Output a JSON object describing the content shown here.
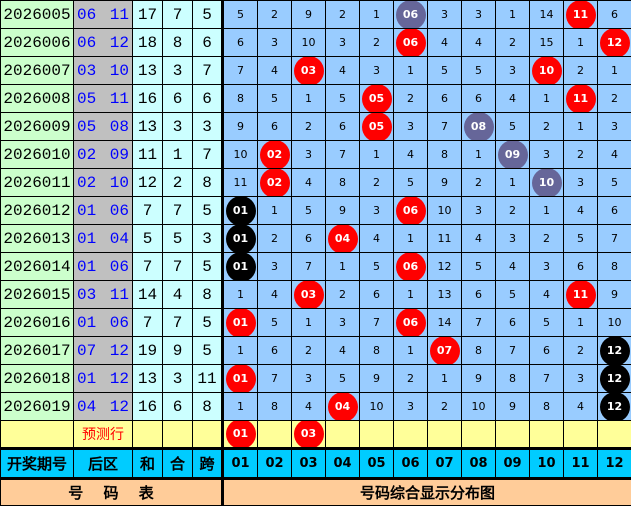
{
  "colors": {
    "red": "#ff0000",
    "purple": "#666699",
    "black": "#000000",
    "cell": "#99ccff",
    "issue": "#ccffcc",
    "back": "#c0c0c0",
    "sum": "#ccffff",
    "predict": "#ffff99",
    "header": "#00ccff",
    "footer": "#ffcc99"
  },
  "rows": [
    {
      "issue": "2026005",
      "back": "06 11",
      "he": "17",
      "hez": "7",
      "kua": "5",
      "cells": [
        "5",
        "2",
        "9",
        "2",
        "1",
        {
          "b": "06",
          "c": "purple"
        },
        "3",
        "3",
        "1",
        "14",
        {
          "b": "11",
          "c": "red"
        },
        "6"
      ]
    },
    {
      "issue": "2026006",
      "back": "06 12",
      "he": "18",
      "hez": "8",
      "kua": "6",
      "cells": [
        "6",
        "3",
        "10",
        "3",
        "2",
        {
          "b": "06",
          "c": "red"
        },
        "4",
        "4",
        "2",
        "15",
        "1",
        {
          "b": "12",
          "c": "red"
        }
      ]
    },
    {
      "issue": "2026007",
      "back": "03 10",
      "he": "13",
      "hez": "3",
      "kua": "7",
      "cells": [
        "7",
        "4",
        {
          "b": "03",
          "c": "red"
        },
        "4",
        "3",
        "1",
        "5",
        "5",
        "3",
        {
          "b": "10",
          "c": "red"
        },
        "2",
        "1"
      ]
    },
    {
      "issue": "2026008",
      "back": "05 11",
      "he": "16",
      "hez": "6",
      "kua": "6",
      "cells": [
        "8",
        "5",
        "1",
        "5",
        {
          "b": "05",
          "c": "red"
        },
        "2",
        "6",
        "6",
        "4",
        "1",
        {
          "b": "11",
          "c": "red"
        },
        "2"
      ]
    },
    {
      "issue": "2026009",
      "back": "05 08",
      "he": "13",
      "hez": "3",
      "kua": "3",
      "cells": [
        "9",
        "6",
        "2",
        "6",
        {
          "b": "05",
          "c": "red"
        },
        "3",
        "7",
        {
          "b": "08",
          "c": "purple"
        },
        "5",
        "2",
        "1",
        "3"
      ]
    },
    {
      "issue": "2026010",
      "back": "02 09",
      "he": "11",
      "hez": "1",
      "kua": "7",
      "cells": [
        "10",
        {
          "b": "02",
          "c": "red"
        },
        "3",
        "7",
        "1",
        "4",
        "8",
        "1",
        {
          "b": "09",
          "c": "purple"
        },
        "3",
        "2",
        "4"
      ]
    },
    {
      "issue": "2026011",
      "back": "02 10",
      "he": "12",
      "hez": "2",
      "kua": "8",
      "cells": [
        "11",
        {
          "b": "02",
          "c": "red"
        },
        "4",
        "8",
        "2",
        "5",
        "9",
        "2",
        "1",
        {
          "b": "10",
          "c": "purple"
        },
        "3",
        "5"
      ]
    },
    {
      "issue": "2026012",
      "back": "01 06",
      "he": "7",
      "hez": "7",
      "kua": "5",
      "cells": [
        {
          "b": "01",
          "c": "black"
        },
        "1",
        "5",
        "9",
        "3",
        {
          "b": "06",
          "c": "red"
        },
        "10",
        "3",
        "2",
        "1",
        "4",
        "6"
      ]
    },
    {
      "issue": "2026013",
      "back": "01 04",
      "he": "5",
      "hez": "5",
      "kua": "3",
      "cells": [
        {
          "b": "01",
          "c": "black"
        },
        "2",
        "6",
        {
          "b": "04",
          "c": "red"
        },
        "4",
        "1",
        "11",
        "4",
        "3",
        "2",
        "5",
        "7"
      ]
    },
    {
      "issue": "2026014",
      "back": "01 06",
      "he": "7",
      "hez": "7",
      "kua": "5",
      "cells": [
        {
          "b": "01",
          "c": "black"
        },
        "3",
        "7",
        "1",
        "5",
        {
          "b": "06",
          "c": "red"
        },
        "12",
        "5",
        "4",
        "3",
        "6",
        "8"
      ]
    },
    {
      "issue": "2026015",
      "back": "03 11",
      "he": "14",
      "hez": "4",
      "kua": "8",
      "cells": [
        "1",
        "4",
        {
          "b": "03",
          "c": "red"
        },
        "2",
        "6",
        "1",
        "13",
        "6",
        "5",
        "4",
        {
          "b": "11",
          "c": "red"
        },
        "9"
      ]
    },
    {
      "issue": "2026016",
      "back": "01 06",
      "he": "7",
      "hez": "7",
      "kua": "5",
      "cells": [
        {
          "b": "01",
          "c": "red"
        },
        "5",
        "1",
        "3",
        "7",
        {
          "b": "06",
          "c": "red"
        },
        "14",
        "7",
        "6",
        "5",
        "1",
        "10"
      ]
    },
    {
      "issue": "2026017",
      "back": "07 12",
      "he": "19",
      "hez": "9",
      "kua": "5",
      "cells": [
        "1",
        "6",
        "2",
        "4",
        "8",
        "1",
        {
          "b": "07",
          "c": "red"
        },
        "8",
        "7",
        "6",
        "2",
        {
          "b": "12",
          "c": "black"
        }
      ]
    },
    {
      "issue": "2026018",
      "back": "01 12",
      "he": "13",
      "hez": "3",
      "kua": "11",
      "cells": [
        {
          "b": "01",
          "c": "red"
        },
        "7",
        "3",
        "5",
        "9",
        "2",
        "1",
        "9",
        "8",
        "7",
        "3",
        {
          "b": "12",
          "c": "black"
        }
      ]
    },
    {
      "issue": "2026019",
      "back": "04 12",
      "he": "16",
      "hez": "6",
      "kua": "8",
      "cells": [
        "1",
        "8",
        "4",
        {
          "b": "04",
          "c": "red"
        },
        "10",
        "3",
        "2",
        "10",
        "9",
        "8",
        "4",
        {
          "b": "12",
          "c": "black"
        }
      ]
    }
  ],
  "prediction": {
    "label": "预测行",
    "cells": [
      {
        "b": "01",
        "c": "red"
      },
      "",
      {
        "b": "03",
        "c": "red"
      },
      "",
      "",
      "",
      "",
      "",
      "",
      "",
      "",
      ""
    ]
  },
  "header": {
    "issue": "开奖期号",
    "back": "后区",
    "he": "和",
    "hez": "合",
    "kua": "跨",
    "numbers": [
      "01",
      "02",
      "03",
      "04",
      "05",
      "06",
      "07",
      "08",
      "09",
      "10",
      "11",
      "12"
    ]
  },
  "footer": {
    "left": "号　 码　 表",
    "right": "号码综合显示分布图"
  }
}
